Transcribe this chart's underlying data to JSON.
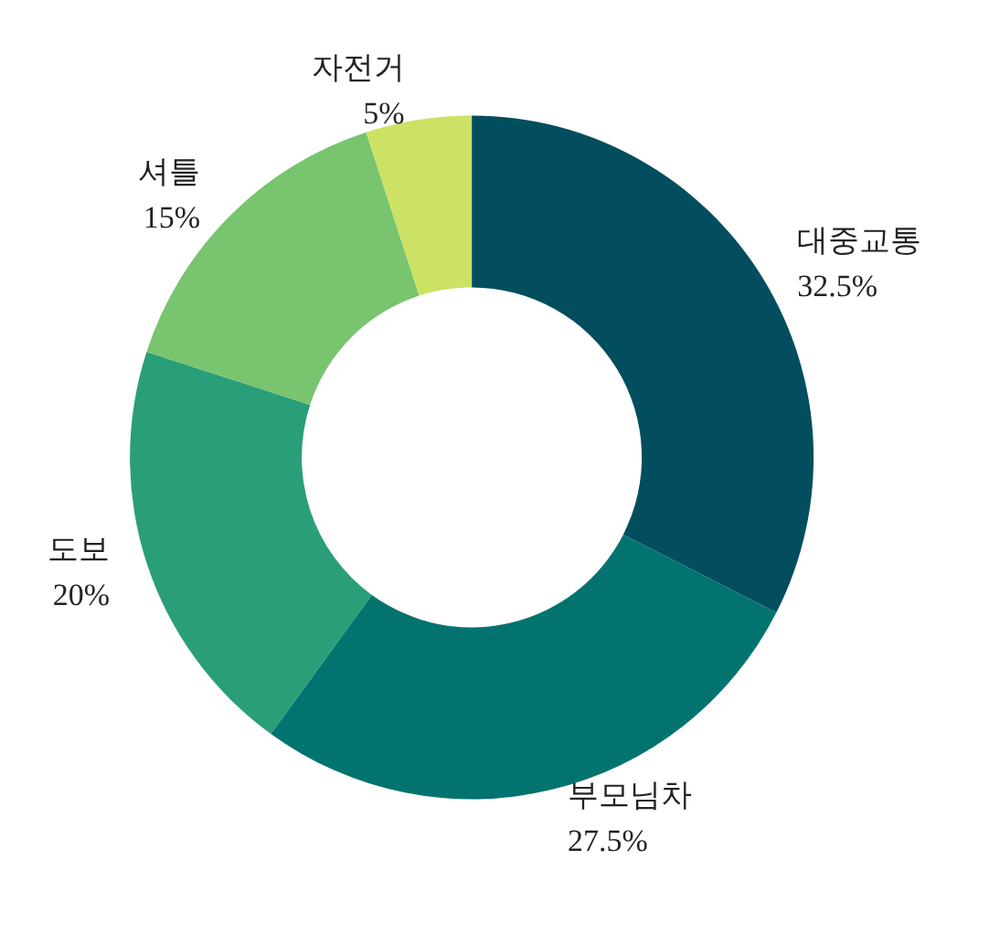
{
  "chart_data": {
    "type": "donut",
    "categories": [
      "대중교통",
      "부모님차",
      "도보",
      "셔틀",
      "자전거"
    ],
    "values": [
      32.5,
      27.5,
      20,
      15,
      5
    ],
    "value_labels": [
      "32.5%",
      "27.5%",
      "20%",
      "15%",
      "5%"
    ],
    "colors": [
      "#024e5e",
      "#03736f",
      "#2a9e79",
      "#78c46f",
      "#cbe265"
    ],
    "legend": false
  }
}
